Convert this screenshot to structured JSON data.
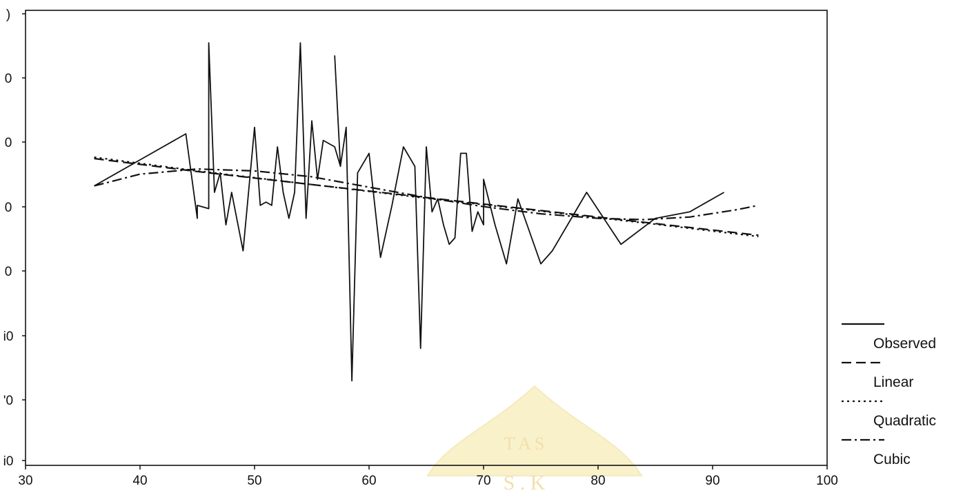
{
  "chart_data": {
    "type": "line",
    "xlim": [
      30,
      100
    ],
    "x_ticks": [
      "30",
      "40",
      "50",
      "60",
      "70",
      "80",
      "90",
      "100"
    ],
    "y_tick_labels": [
      ")",
      "0",
      "0",
      "0",
      "0",
      "i0",
      "'0",
      "i0"
    ],
    "grid": false,
    "legend_position": "right",
    "legend": [
      "Observed",
      "Linear",
      "Quadratic",
      "Cubic"
    ],
    "series": [
      {
        "name": "Observed",
        "style": "solid",
        "color": "#111111",
        "points": [
          [
            36,
            37
          ],
          [
            40,
            33
          ],
          [
            44,
            29
          ],
          [
            45,
            42
          ],
          [
            45,
            40
          ],
          [
            46,
            40.5
          ],
          [
            46,
            15
          ],
          [
            46.5,
            38
          ],
          [
            47,
            35
          ],
          [
            47.5,
            43
          ],
          [
            48,
            38
          ],
          [
            49,
            47
          ],
          [
            50,
            28
          ],
          [
            50.5,
            40
          ],
          [
            51,
            39.5
          ],
          [
            51.5,
            40
          ],
          [
            52,
            31
          ],
          [
            52.5,
            38
          ],
          [
            53,
            42
          ],
          [
            53.5,
            38
          ],
          [
            54,
            15
          ],
          [
            54.5,
            42
          ],
          [
            55,
            27
          ],
          [
            55.5,
            36
          ],
          [
            56,
            30
          ],
          [
            57,
            31
          ],
          [
            57.5,
            34
          ],
          [
            57,
            17
          ],
          [
            57.5,
            34
          ],
          [
            58,
            28
          ],
          [
            58.5,
            67
          ],
          [
            59,
            35
          ],
          [
            60,
            32
          ],
          [
            61,
            48
          ],
          [
            62,
            40
          ],
          [
            63,
            31
          ],
          [
            64,
            34
          ],
          [
            64.5,
            62
          ],
          [
            65,
            31
          ],
          [
            65.5,
            41
          ],
          [
            66,
            39
          ],
          [
            66.5,
            43
          ],
          [
            67,
            46
          ],
          [
            67.5,
            45
          ],
          [
            68,
            32
          ],
          [
            68.5,
            32
          ],
          [
            69,
            44
          ],
          [
            69.5,
            41
          ],
          [
            70,
            43
          ],
          [
            70,
            36
          ],
          [
            71,
            43
          ],
          [
            72,
            49
          ],
          [
            73,
            39
          ],
          [
            75,
            49
          ],
          [
            76,
            47
          ],
          [
            79,
            38
          ],
          [
            82,
            46
          ],
          [
            85,
            42
          ],
          [
            88,
            41
          ],
          [
            91,
            38
          ]
        ]
      },
      {
        "name": "Linear",
        "style": "dashed",
        "color": "#111111",
        "points": [
          [
            36,
            32.8
          ],
          [
            45,
            34.8
          ],
          [
            55,
            36.8
          ],
          [
            65,
            38.8
          ],
          [
            75,
            40.8
          ],
          [
            85,
            42.8
          ],
          [
            94,
            44.6
          ]
        ]
      },
      {
        "name": "Quadratic",
        "style": "dotted",
        "color": "#111111",
        "points": [
          [
            36,
            32.6
          ],
          [
            45,
            34.7
          ],
          [
            55,
            36.8
          ],
          [
            65,
            38.9
          ],
          [
            75,
            40.9
          ],
          [
            85,
            42.9
          ],
          [
            94,
            44.8
          ]
        ]
      },
      {
        "name": "Cubic",
        "style": "dashdot",
        "color": "#111111",
        "points": [
          [
            36,
            37.0
          ],
          [
            40,
            35.2
          ],
          [
            45,
            34.4
          ],
          [
            50,
            34.7
          ],
          [
            55,
            35.6
          ],
          [
            60,
            37.2
          ],
          [
            65,
            38.8
          ],
          [
            70,
            40.2
          ],
          [
            75,
            41.3
          ],
          [
            80,
            42.0
          ],
          [
            84,
            42.2
          ],
          [
            88,
            41.8
          ],
          [
            92,
            40.7
          ],
          [
            94,
            40.0
          ]
        ]
      }
    ]
  },
  "watermark": {
    "text_top": "T A S",
    "text_bottom": "S . K"
  }
}
